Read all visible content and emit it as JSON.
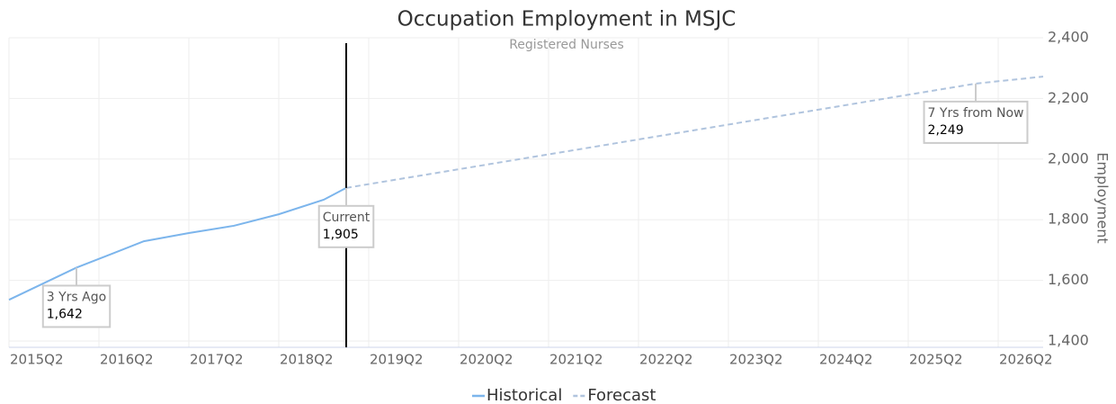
{
  "chart_data": {
    "type": "line",
    "title": "Occupation Employment in MSJC",
    "subtitle": "Registered Nurses",
    "y_axis_label": "Employment",
    "xlim": [
      "2015Q2",
      "2026Q4"
    ],
    "xticks": [
      "2015Q2",
      "2016Q2",
      "2017Q2",
      "2018Q2",
      "2019Q2",
      "2020Q2",
      "2021Q2",
      "2022Q2",
      "2023Q2",
      "2024Q2",
      "2025Q2",
      "2026Q2"
    ],
    "ylim": [
      1400,
      2400
    ],
    "yticks": [
      {
        "value": 1400,
        "label": "1,400"
      },
      {
        "value": 1600,
        "label": "1,600"
      },
      {
        "value": 1800,
        "label": "1,800"
      },
      {
        "value": 2000,
        "label": "2,000"
      },
      {
        "value": 2200,
        "label": "2,200"
      },
      {
        "value": 2400,
        "label": "2,400"
      }
    ],
    "grid": true,
    "legend": "bottom",
    "series": [
      {
        "name": "Historical",
        "color": "#7cb5ec",
        "dashed": false,
        "x": [
          "2015Q2",
          "2016Q1",
          "2016Q4",
          "2017Q2",
          "2017Q4",
          "2018Q2",
          "2018Q4",
          "2019Q1"
        ],
        "values": [
          1536,
          1642,
          1729,
          1756,
          1780,
          1818,
          1866,
          1905
        ]
      },
      {
        "name": "Forecast",
        "color": "#b0c4de",
        "dashed": true,
        "x": [
          "2019Q1",
          "2026Q1",
          "2026Q4"
        ],
        "values": [
          1905,
          2249,
          2272
        ]
      }
    ],
    "annotations": [
      {
        "x": "2016Q1",
        "title": "3 Yrs Ago",
        "value": 1642,
        "value_label": "1,642"
      },
      {
        "x": "2019Q1",
        "title": "Current",
        "value": 1905,
        "value_label": "1,905",
        "vertical_line": true
      },
      {
        "x": "2026Q1",
        "title": "7 Yrs from Now",
        "value": 2249,
        "value_label": "2,249"
      }
    ]
  }
}
